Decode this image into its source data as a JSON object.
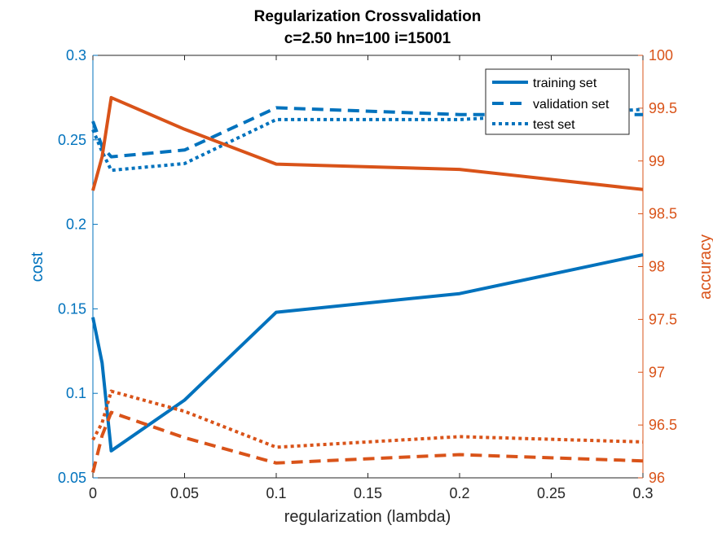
{
  "chart_data": {
    "type": "line",
    "title": "Regularization Crossvalidation",
    "subtitle": "c=2.50 hn=100 i=15001",
    "xlabel": "regularization (lambda)",
    "ylabel_left": "cost",
    "ylabel_right": "accuracy",
    "xlim": [
      0,
      0.3
    ],
    "ylim_left": [
      0.05,
      0.3
    ],
    "ylim_right": [
      96,
      100
    ],
    "xticks": [
      "0",
      "0.05",
      "0.1",
      "0.15",
      "0.2",
      "0.25",
      "0.3"
    ],
    "xtick_values": [
      0,
      0.05,
      0.1,
      0.15,
      0.2,
      0.25,
      0.3
    ],
    "yticks_left": [
      "0.05",
      "0.1",
      "0.15",
      "0.2",
      "0.25",
      "0.3"
    ],
    "ytick_values_left": [
      0.05,
      0.1,
      0.15,
      0.2,
      0.25,
      0.3
    ],
    "yticks_right": [
      "96",
      "96.5",
      "97",
      "97.5",
      "98",
      "98.5",
      "99",
      "99.5",
      "100"
    ],
    "ytick_values_right": [
      96,
      96.5,
      97,
      97.5,
      98,
      98.5,
      99,
      99.5,
      100
    ],
    "grid": false,
    "legend_position": "top-right",
    "legend": [
      "training set",
      "validation set",
      "test set"
    ],
    "colors": {
      "left": "#0072BD",
      "right": "#D95319",
      "axis": "#262626"
    },
    "x": [
      0,
      0.005,
      0.01,
      0.05,
      0.1,
      0.2,
      0.3
    ],
    "series": [
      {
        "name": "training set",
        "axis": "left",
        "style": "solid",
        "values": [
          0.145,
          0.118,
          0.066,
          0.096,
          0.148,
          0.159,
          0.182
        ]
      },
      {
        "name": "validation set",
        "axis": "left",
        "style": "dashed",
        "values": [
          0.261,
          0.246,
          0.24,
          0.244,
          0.269,
          0.265,
          0.265
        ]
      },
      {
        "name": "test set",
        "axis": "left",
        "style": "dotted",
        "values": [
          0.256,
          0.243,
          0.232,
          0.236,
          0.262,
          0.262,
          0.268
        ]
      },
      {
        "name": "training set",
        "axis": "right",
        "style": "solid",
        "values": [
          98.72,
          99.04,
          99.6,
          99.3,
          98.97,
          98.92,
          98.73
        ]
      },
      {
        "name": "validation set",
        "axis": "right",
        "style": "dashed",
        "values": [
          96.05,
          96.4,
          96.62,
          96.38,
          96.14,
          96.22,
          96.16
        ]
      },
      {
        "name": "test set",
        "axis": "right",
        "style": "dotted",
        "values": [
          96.36,
          96.52,
          96.82,
          96.63,
          96.29,
          96.39,
          96.34
        ]
      }
    ]
  }
}
